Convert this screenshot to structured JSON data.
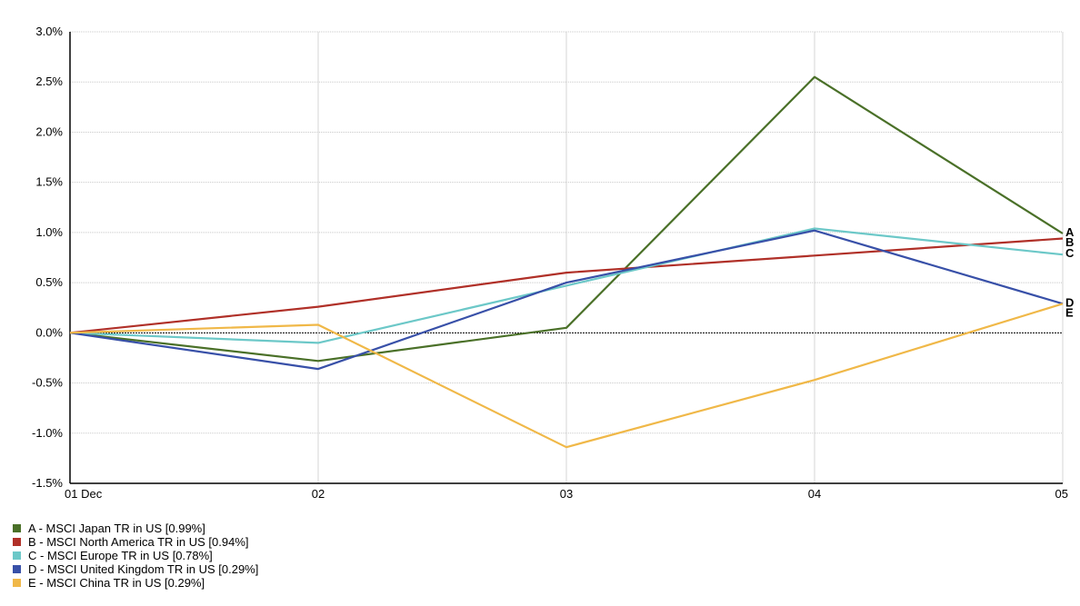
{
  "chart_data": {
    "type": "line",
    "title": "",
    "xlabel": "",
    "ylabel": "",
    "x": [
      "01 Dec",
      "02",
      "03",
      "04",
      "05"
    ],
    "ylim": [
      -1.5,
      3.0
    ],
    "y_ticks": [
      "3.0%",
      "2.5%",
      "2.0%",
      "1.5%",
      "1.0%",
      "0.5%",
      "0.0%",
      "-0.5%",
      "-1.0%",
      "-1.5%"
    ],
    "y_tick_values": [
      3.0,
      2.5,
      2.0,
      1.5,
      1.0,
      0.5,
      0.0,
      -0.5,
      -1.0,
      -1.5
    ],
    "grid": true,
    "legend_position": "bottom-left",
    "series": [
      {
        "tag": "A",
        "name": "A - MSCI Japan TR in US [0.99%]",
        "color": "#4a7028",
        "values": [
          0,
          -0.28,
          0.05,
          2.55,
          0.99
        ]
      },
      {
        "tag": "B",
        "name": "B - MSCI North America TR in US [0.94%]",
        "color": "#b03028",
        "values": [
          0,
          0.26,
          0.6,
          0.77,
          0.94
        ]
      },
      {
        "tag": "C",
        "name": "C - MSCI Europe TR in US [0.78%]",
        "color": "#6cc8c8",
        "values": [
          0,
          -0.1,
          0.47,
          1.04,
          0.78
        ]
      },
      {
        "tag": "D",
        "name": "D - MSCI United Kingdom TR in US [0.29%]",
        "color": "#3850a8",
        "values": [
          0,
          -0.36,
          0.5,
          1.02,
          0.29
        ]
      },
      {
        "tag": "E",
        "name": "E - MSCI China TR in US [0.29%]",
        "color": "#f0b848",
        "values": [
          0,
          0.08,
          -1.14,
          -0.47,
          0.29
        ]
      }
    ]
  }
}
